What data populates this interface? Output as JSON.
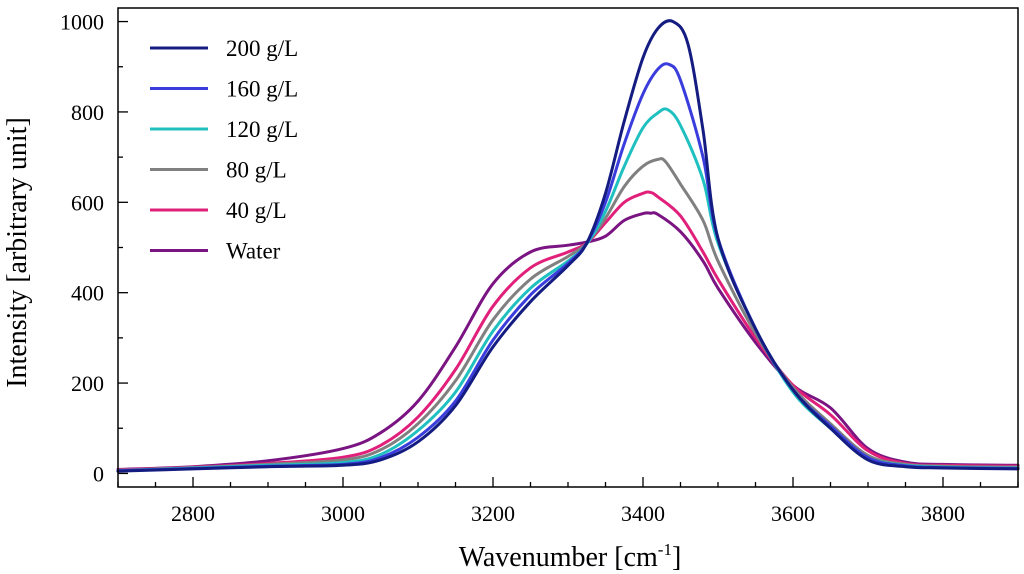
{
  "chart_data": {
    "type": "line",
    "title": "",
    "xlabel": "Wavenumber [cm",
    "xlabel_sup": "-1",
    "xlabel_end": "]",
    "ylabel": "Intensity [arbitrary unit]",
    "xlim": [
      2700,
      3900
    ],
    "ylim": [
      -30,
      1030
    ],
    "x_ticks": [
      2800,
      3000,
      3200,
      3400,
      3600,
      3800
    ],
    "y_ticks": [
      0,
      200,
      400,
      600,
      800,
      1000
    ],
    "legend_position": "top-left",
    "series": [
      {
        "name": "200 g/L",
        "color": "#141c82",
        "x": [
          2700,
          2800,
          2900,
          3000,
          3050,
          3100,
          3150,
          3200,
          3250,
          3300,
          3325,
          3350,
          3375,
          3400,
          3420,
          3440,
          3460,
          3480,
          3500,
          3550,
          3600,
          3650,
          3700,
          3750,
          3800,
          3900
        ],
        "y": [
          5,
          10,
          15,
          18,
          30,
          70,
          150,
          280,
          380,
          460,
          510,
          620,
          780,
          920,
          985,
          1000,
          950,
          760,
          520,
          320,
          185,
          100,
          30,
          15,
          12,
          10
        ]
      },
      {
        "name": "160 g/L",
        "color": "#3a3ddc",
        "x": [
          2700,
          2800,
          2900,
          3000,
          3050,
          3100,
          3150,
          3200,
          3250,
          3300,
          3325,
          3350,
          3375,
          3400,
          3420,
          3435,
          3450,
          3480,
          3500,
          3550,
          3600,
          3650,
          3700,
          3750,
          3800,
          3900
        ],
        "y": [
          6,
          11,
          16,
          20,
          35,
          80,
          160,
          295,
          395,
          465,
          510,
          600,
          730,
          840,
          895,
          905,
          870,
          700,
          520,
          320,
          185,
          105,
          35,
          17,
          13,
          11
        ]
      },
      {
        "name": "120 g/L",
        "color": "#20c0c0",
        "x": [
          2700,
          2800,
          2900,
          3000,
          3050,
          3100,
          3150,
          3200,
          3250,
          3300,
          3325,
          3350,
          3375,
          3400,
          3420,
          3433,
          3450,
          3480,
          3500,
          3550,
          3600,
          3650,
          3700,
          3750,
          3800,
          3900
        ],
        "y": [
          6,
          12,
          18,
          24,
          42,
          95,
          180,
          315,
          410,
          470,
          508,
          580,
          680,
          765,
          798,
          805,
          770,
          650,
          510,
          320,
          180,
          100,
          35,
          18,
          14,
          12
        ]
      },
      {
        "name": "80 g/L",
        "color": "#808080",
        "x": [
          2700,
          2800,
          2900,
          3000,
          3050,
          3100,
          3150,
          3200,
          3250,
          3300,
          3325,
          3350,
          3375,
          3400,
          3420,
          3430,
          3450,
          3480,
          3500,
          3550,
          3600,
          3650,
          3700,
          3750,
          3800,
          3900
        ],
        "y": [
          7,
          13,
          20,
          30,
          52,
          110,
          205,
          340,
          430,
          480,
          510,
          565,
          635,
          680,
          695,
          690,
          640,
          560,
          470,
          310,
          190,
          110,
          40,
          20,
          16,
          14
        ]
      },
      {
        "name": "40 g/L",
        "color": "#e0207a",
        "x": [
          2700,
          2800,
          2900,
          3000,
          3050,
          3100,
          3150,
          3200,
          3250,
          3300,
          3325,
          3350,
          3375,
          3400,
          3410,
          3420,
          3450,
          3480,
          3500,
          3550,
          3600,
          3650,
          3700,
          3750,
          3800,
          3900
        ],
        "y": [
          8,
          14,
          22,
          36,
          62,
          125,
          230,
          370,
          455,
          490,
          510,
          555,
          600,
          620,
          622,
          612,
          570,
          490,
          430,
          300,
          195,
          130,
          50,
          22,
          18,
          16
        ]
      },
      {
        "name": "Water",
        "color": "#7a1482",
        "x": [
          2700,
          2800,
          2900,
          3000,
          3050,
          3100,
          3150,
          3200,
          3250,
          3300,
          3325,
          3350,
          3375,
          3400,
          3410,
          3420,
          3450,
          3480,
          3500,
          3550,
          3600,
          3650,
          3700,
          3750,
          3800,
          3900
        ],
        "y": [
          9,
          15,
          28,
          55,
          90,
          160,
          280,
          420,
          490,
          505,
          512,
          525,
          560,
          575,
          576,
          573,
          535,
          470,
          410,
          290,
          195,
          145,
          55,
          25,
          20,
          18
        ]
      }
    ]
  }
}
